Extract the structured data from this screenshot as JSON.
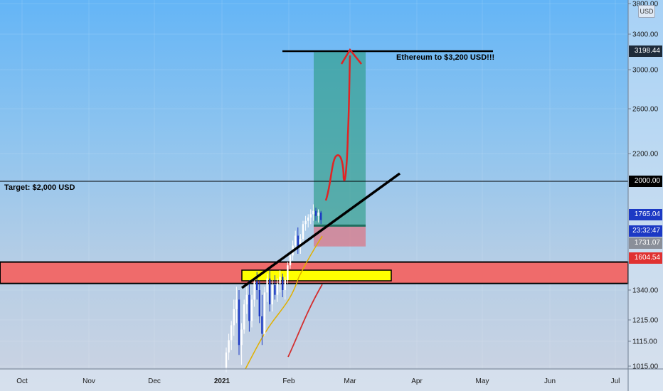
{
  "chart_data": {
    "type": "candlestick",
    "symbol_currency": "USD",
    "y_ticks": [
      1015,
      1115,
      1215,
      1340,
      2200,
      2600,
      3000,
      3400,
      3800
    ],
    "y_tick_labels": [
      "1015.00",
      "1115.00",
      "1215.00",
      "1340.00",
      "2200.00",
      "2600.00",
      "3000.00",
      "3400.00",
      "3800.00"
    ],
    "x_ticks": [
      "Oct",
      "Nov",
      "Dec",
      "2021",
      "Feb",
      "Mar",
      "Apr",
      "May",
      "Jun",
      "Jul"
    ],
    "price_tags": [
      {
        "label": "3198.44",
        "value": 3198.44,
        "bg": "#1e2b3a",
        "color": "#ffffff"
      },
      {
        "label": "2000.00",
        "value": 2000,
        "bg": "#000000",
        "color": "#ffffff"
      },
      {
        "label": "1765.04",
        "value": 1765.04,
        "bg": "#1c39c4",
        "color": "#ffffff"
      },
      {
        "label": "23:32:47",
        "value": 1700,
        "bg": "#1c39c4",
        "color": "#ffffff"
      },
      {
        "label": "1731.07",
        "value": 1731.07,
        "bg": "#8a8f99",
        "color": "#ffffff"
      },
      {
        "label": "1604.54",
        "value": 1604.54,
        "bg": "#e03131",
        "color": "#ffffff"
      }
    ],
    "annotations": {
      "target_label": "Target: $2,000 USD",
      "eth_label": "Ethereum to $3,200 USD!!!"
    },
    "levels": {
      "target": 2000,
      "eth_target": 3198.44,
      "support_zone": [
        1380,
        1510
      ],
      "entry": 1731.07,
      "stop": 1604.54
    },
    "candles": [
      {
        "o": 1010,
        "h": 1090,
        "l": 990,
        "c": 1070
      },
      {
        "o": 1070,
        "h": 1150,
        "l": 1040,
        "c": 1120
      },
      {
        "o": 1120,
        "h": 1210,
        "l": 1080,
        "c": 1190
      },
      {
        "o": 1190,
        "h": 1300,
        "l": 1140,
        "c": 1260
      },
      {
        "o": 1260,
        "h": 1360,
        "l": 1200,
        "c": 1300
      },
      {
        "o": 1300,
        "h": 1340,
        "l": 1060,
        "c": 1100
      },
      {
        "o": 1100,
        "h": 1200,
        "l": 1020,
        "c": 1170
      },
      {
        "o": 1170,
        "h": 1300,
        "l": 1150,
        "c": 1280
      },
      {
        "o": 1280,
        "h": 1380,
        "l": 1240,
        "c": 1320
      },
      {
        "o": 1320,
        "h": 1400,
        "l": 1160,
        "c": 1210
      },
      {
        "o": 1210,
        "h": 1320,
        "l": 1180,
        "c": 1300
      },
      {
        "o": 1300,
        "h": 1420,
        "l": 1270,
        "c": 1390
      },
      {
        "o": 1390,
        "h": 1450,
        "l": 1300,
        "c": 1340
      },
      {
        "o": 1340,
        "h": 1400,
        "l": 1200,
        "c": 1230
      },
      {
        "o": 1230,
        "h": 1320,
        "l": 1100,
        "c": 1150
      },
      {
        "o": 1150,
        "h": 1360,
        "l": 1140,
        "c": 1330
      },
      {
        "o": 1330,
        "h": 1440,
        "l": 1290,
        "c": 1410
      },
      {
        "o": 1410,
        "h": 1460,
        "l": 1250,
        "c": 1280
      },
      {
        "o": 1280,
        "h": 1400,
        "l": 1250,
        "c": 1370
      },
      {
        "o": 1370,
        "h": 1430,
        "l": 1300,
        "c": 1320
      },
      {
        "o": 1320,
        "h": 1410,
        "l": 1290,
        "c": 1380
      },
      {
        "o": 1380,
        "h": 1460,
        "l": 1330,
        "c": 1420
      },
      {
        "o": 1420,
        "h": 1440,
        "l": 1310,
        "c": 1340
      },
      {
        "o": 1340,
        "h": 1420,
        "l": 1300,
        "c": 1400
      },
      {
        "o": 1400,
        "h": 1510,
        "l": 1380,
        "c": 1490
      },
      {
        "o": 1490,
        "h": 1570,
        "l": 1470,
        "c": 1550
      },
      {
        "o": 1550,
        "h": 1640,
        "l": 1520,
        "c": 1610
      },
      {
        "o": 1610,
        "h": 1700,
        "l": 1580,
        "c": 1670
      },
      {
        "o": 1670,
        "h": 1720,
        "l": 1560,
        "c": 1600
      },
      {
        "o": 1600,
        "h": 1680,
        "l": 1560,
        "c": 1650
      },
      {
        "o": 1650,
        "h": 1760,
        "l": 1630,
        "c": 1740
      },
      {
        "o": 1740,
        "h": 1790,
        "l": 1700,
        "c": 1760
      },
      {
        "o": 1760,
        "h": 1800,
        "l": 1720,
        "c": 1780
      },
      {
        "o": 1780,
        "h": 1830,
        "l": 1740,
        "c": 1800
      },
      {
        "o": 1800,
        "h": 1860,
        "l": 1760,
        "c": 1820
      },
      {
        "o": 1820,
        "h": 1840,
        "l": 1760,
        "c": 1790
      },
      {
        "o": 1790,
        "h": 1830,
        "l": 1750,
        "c": 1810
      },
      {
        "o": 1810,
        "h": 1820,
        "l": 1740,
        "c": 1765
      }
    ]
  }
}
